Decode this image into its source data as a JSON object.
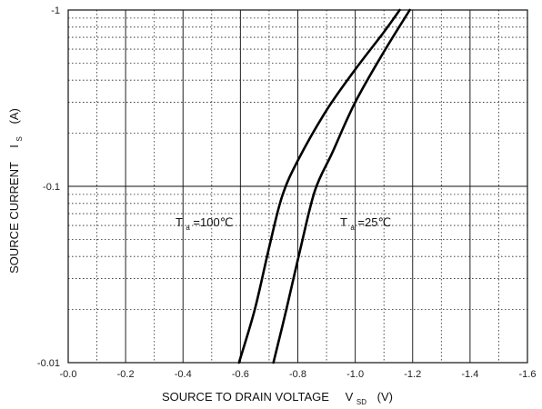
{
  "chart_data": {
    "type": "line",
    "xlabel": "SOURCE TO DRAIN VOLTAGE",
    "xlabel_symbol": "V",
    "xlabel_subscript": "SD",
    "xlabel_unit": "(V)",
    "ylabel": "SOURCE CURRENT",
    "ylabel_symbol": "I",
    "ylabel_subscript": "S",
    "ylabel_unit": "(A)",
    "xlim": [
      0.0,
      -1.6
    ],
    "ylim": [
      -0.01,
      -1
    ],
    "yscale": "log",
    "grid": "dotted minor, solid major",
    "x_ticks": [
      0.0,
      -0.2,
      -0.4,
      -0.6,
      -0.8,
      -1.0,
      -1.2,
      -1.4,
      -1.6
    ],
    "x_tick_labels": [
      "-0.0",
      "-0.2",
      "-0.4",
      "-0.6",
      "-0.8",
      "-1.0",
      "-1.2",
      "-1.4",
      "-1.6"
    ],
    "y_ticks": [
      -0.01,
      -0.1,
      -1
    ],
    "y_tick_labels": [
      "-0.01",
      "-0.1",
      "-1"
    ],
    "series": [
      {
        "label_main": "T",
        "label_sub": "a",
        "label_rest": "=100℃",
        "points": [
          {
            "x": -0.595,
            "y": -0.01
          },
          {
            "x": -0.65,
            "y": -0.02
          },
          {
            "x": -0.7,
            "y": -0.045
          },
          {
            "x": -0.745,
            "y": -0.0875
          },
          {
            "x": -0.8,
            "y": -0.14
          },
          {
            "x": -0.9,
            "y": -0.27
          },
          {
            "x": -1.0,
            "y": -0.46
          },
          {
            "x": -1.1,
            "y": -0.75
          },
          {
            "x": -1.155,
            "y": -1.0
          }
        ]
      },
      {
        "label_main": "T",
        "label_sub": "a",
        "label_rest": "=25℃",
        "points": [
          {
            "x": -0.715,
            "y": -0.01
          },
          {
            "x": -0.76,
            "y": -0.02
          },
          {
            "x": -0.81,
            "y": -0.045
          },
          {
            "x": -0.86,
            "y": -0.095
          },
          {
            "x": -0.92,
            "y": -0.155
          },
          {
            "x": -1.0,
            "y": -0.3
          },
          {
            "x": -1.1,
            "y": -0.58
          },
          {
            "x": -1.19,
            "y": -1.0
          }
        ]
      }
    ]
  }
}
